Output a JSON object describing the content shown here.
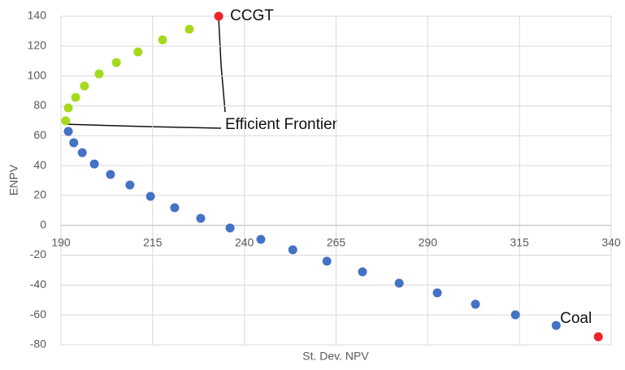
{
  "chart_data": {
    "type": "scatter",
    "x_label": "St. Dev. NPV",
    "y_label": "ENPV",
    "xlim": [
      190,
      340
    ],
    "xticks": [
      190,
      215,
      240,
      265,
      290,
      315,
      340
    ],
    "ylim": [
      -80,
      140
    ],
    "yticks": [
      -80,
      -60,
      -40,
      -20,
      0,
      20,
      40,
      60,
      80,
      100,
      120,
      140
    ],
    "grid": true,
    "series": [
      {
        "color": "#a6d91e",
        "x": [
          191.3,
          192.0,
          194.0,
          196.4,
          200.4,
          205.1,
          211.0,
          217.7,
          225.0
        ],
        "values": [
          70,
          78.6,
          85.7,
          93.3,
          101.4,
          109.0,
          116.1,
          124.2,
          131.3
        ]
      },
      {
        "color": "#4472c4",
        "x": [
          192.0,
          193.5,
          195.8,
          199.1,
          203.5,
          208.8,
          214.4,
          221.0,
          228.1,
          236.1,
          244.5,
          253.2,
          262.5,
          272.2,
          282.2,
          292.6,
          303.0,
          313.9,
          325.0
        ],
        "values": [
          62.9,
          55.3,
          48.7,
          41.1,
          34.1,
          27.0,
          19.4,
          11.8,
          4.7,
          -1.8,
          -9.4,
          -16.4,
          -24.0,
          -31.1,
          -38.7,
          -45.2,
          -52.8,
          -59.9,
          -67.0
        ]
      },
      {
        "color": "#f0232a",
        "x": [
          233.0,
          336.5
        ],
        "values": [
          140,
          -74.6
        ],
        "point_labels": [
          "CCGT",
          "Coal"
        ]
      }
    ],
    "annotations": [
      "Efficient Frontier"
    ]
  }
}
